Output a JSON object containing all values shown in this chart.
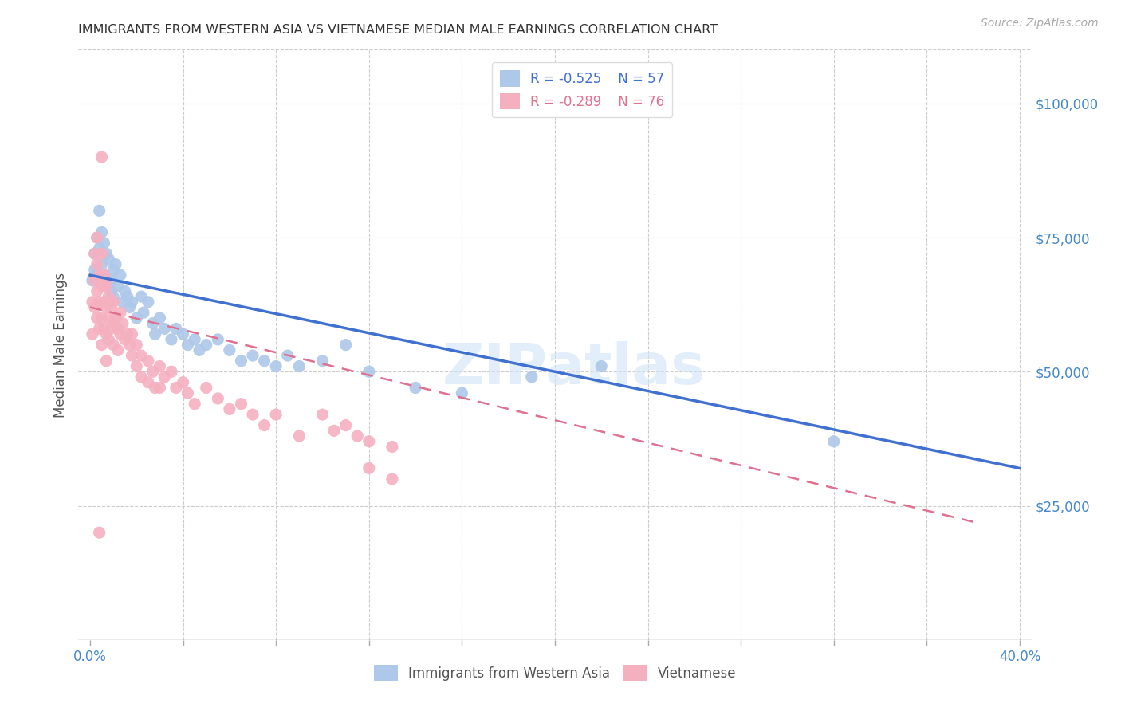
{
  "title": "IMMIGRANTS FROM WESTERN ASIA VS VIETNAMESE MEDIAN MALE EARNINGS CORRELATION CHART",
  "source": "Source: ZipAtlas.com",
  "xlabel_ticks_shown": [
    "0.0%",
    "40.0%"
  ],
  "xlabel_ticks_shown_vals": [
    0.0,
    0.4
  ],
  "xlabel_tick_vals": [
    0.0,
    0.04,
    0.08,
    0.12,
    0.16,
    0.2,
    0.24,
    0.28,
    0.32,
    0.36,
    0.4
  ],
  "ylabel": "Median Male Earnings",
  "ylabel_right_ticks": [
    "$25,000",
    "$50,000",
    "$75,000",
    "$100,000"
  ],
  "ylabel_right_vals": [
    25000,
    50000,
    75000,
    100000
  ],
  "xlim": [
    -0.005,
    0.405
  ],
  "ylim": [
    0,
    110000
  ],
  "watermark": "ZIPatlas",
  "blue_R": "-0.525",
  "blue_N": "57",
  "pink_R": "-0.289",
  "pink_N": "76",
  "blue_color": "#adc8e8",
  "pink_color": "#f5b0c0",
  "blue_line_color": "#4070d0",
  "pink_line_color": "#e07090",
  "legend_label_blue": "Immigrants from Western Asia",
  "legend_label_pink": "Vietnamese",
  "blue_scatter": [
    [
      0.001,
      67000
    ],
    [
      0.002,
      72000
    ],
    [
      0.002,
      69000
    ],
    [
      0.003,
      75000
    ],
    [
      0.003,
      68000
    ],
    [
      0.004,
      80000
    ],
    [
      0.004,
      73000
    ],
    [
      0.005,
      76000
    ],
    [
      0.005,
      70000
    ],
    [
      0.006,
      68000
    ],
    [
      0.006,
      74000
    ],
    [
      0.007,
      72000
    ],
    [
      0.007,
      66000
    ],
    [
      0.008,
      71000
    ],
    [
      0.009,
      67000
    ],
    [
      0.009,
      65000
    ],
    [
      0.01,
      69000
    ],
    [
      0.01,
      64000
    ],
    [
      0.011,
      70000
    ],
    [
      0.012,
      66000
    ],
    [
      0.013,
      68000
    ],
    [
      0.014,
      63000
    ],
    [
      0.015,
      65000
    ],
    [
      0.016,
      64000
    ],
    [
      0.017,
      62000
    ],
    [
      0.018,
      63000
    ],
    [
      0.02,
      60000
    ],
    [
      0.022,
      64000
    ],
    [
      0.023,
      61000
    ],
    [
      0.025,
      63000
    ],
    [
      0.027,
      59000
    ],
    [
      0.028,
      57000
    ],
    [
      0.03,
      60000
    ],
    [
      0.032,
      58000
    ],
    [
      0.035,
      56000
    ],
    [
      0.037,
      58000
    ],
    [
      0.04,
      57000
    ],
    [
      0.042,
      55000
    ],
    [
      0.045,
      56000
    ],
    [
      0.047,
      54000
    ],
    [
      0.05,
      55000
    ],
    [
      0.055,
      56000
    ],
    [
      0.06,
      54000
    ],
    [
      0.065,
      52000
    ],
    [
      0.07,
      53000
    ],
    [
      0.075,
      52000
    ],
    [
      0.08,
      51000
    ],
    [
      0.085,
      53000
    ],
    [
      0.09,
      51000
    ],
    [
      0.1,
      52000
    ],
    [
      0.11,
      55000
    ],
    [
      0.12,
      50000
    ],
    [
      0.14,
      47000
    ],
    [
      0.16,
      46000
    ],
    [
      0.19,
      49000
    ],
    [
      0.22,
      51000
    ],
    [
      0.32,
      37000
    ]
  ],
  "pink_scatter": [
    [
      0.001,
      63000
    ],
    [
      0.001,
      57000
    ],
    [
      0.002,
      72000
    ],
    [
      0.002,
      67000
    ],
    [
      0.002,
      62000
    ],
    [
      0.003,
      75000
    ],
    [
      0.003,
      70000
    ],
    [
      0.003,
      65000
    ],
    [
      0.003,
      60000
    ],
    [
      0.004,
      68000
    ],
    [
      0.004,
      63000
    ],
    [
      0.004,
      58000
    ],
    [
      0.005,
      90000
    ],
    [
      0.005,
      72000
    ],
    [
      0.005,
      66000
    ],
    [
      0.005,
      60000
    ],
    [
      0.005,
      55000
    ],
    [
      0.006,
      68000
    ],
    [
      0.006,
      63000
    ],
    [
      0.006,
      58000
    ],
    [
      0.007,
      66000
    ],
    [
      0.007,
      62000
    ],
    [
      0.007,
      57000
    ],
    [
      0.007,
      52000
    ],
    [
      0.008,
      64000
    ],
    [
      0.008,
      60000
    ],
    [
      0.008,
      56000
    ],
    [
      0.009,
      62000
    ],
    [
      0.009,
      58000
    ],
    [
      0.01,
      63000
    ],
    [
      0.01,
      59000
    ],
    [
      0.01,
      55000
    ],
    [
      0.011,
      60000
    ],
    [
      0.012,
      58000
    ],
    [
      0.012,
      54000
    ],
    [
      0.013,
      61000
    ],
    [
      0.013,
      57000
    ],
    [
      0.014,
      59000
    ],
    [
      0.015,
      56000
    ],
    [
      0.016,
      57000
    ],
    [
      0.017,
      55000
    ],
    [
      0.018,
      57000
    ],
    [
      0.018,
      53000
    ],
    [
      0.02,
      55000
    ],
    [
      0.02,
      51000
    ],
    [
      0.022,
      53000
    ],
    [
      0.022,
      49000
    ],
    [
      0.025,
      52000
    ],
    [
      0.025,
      48000
    ],
    [
      0.027,
      50000
    ],
    [
      0.028,
      47000
    ],
    [
      0.03,
      51000
    ],
    [
      0.03,
      47000
    ],
    [
      0.032,
      49000
    ],
    [
      0.035,
      50000
    ],
    [
      0.037,
      47000
    ],
    [
      0.04,
      48000
    ],
    [
      0.042,
      46000
    ],
    [
      0.045,
      44000
    ],
    [
      0.05,
      47000
    ],
    [
      0.055,
      45000
    ],
    [
      0.06,
      43000
    ],
    [
      0.065,
      44000
    ],
    [
      0.07,
      42000
    ],
    [
      0.075,
      40000
    ],
    [
      0.08,
      42000
    ],
    [
      0.09,
      38000
    ],
    [
      0.1,
      42000
    ],
    [
      0.105,
      39000
    ],
    [
      0.11,
      40000
    ],
    [
      0.115,
      38000
    ],
    [
      0.12,
      37000
    ],
    [
      0.13,
      36000
    ],
    [
      0.004,
      20000
    ],
    [
      0.12,
      32000
    ],
    [
      0.13,
      30000
    ]
  ],
  "blue_line_x": [
    0.0,
    0.4
  ],
  "blue_line_y": [
    68000,
    32000
  ],
  "pink_line_x": [
    0.0,
    0.38
  ],
  "pink_line_y": [
    62000,
    22000
  ]
}
